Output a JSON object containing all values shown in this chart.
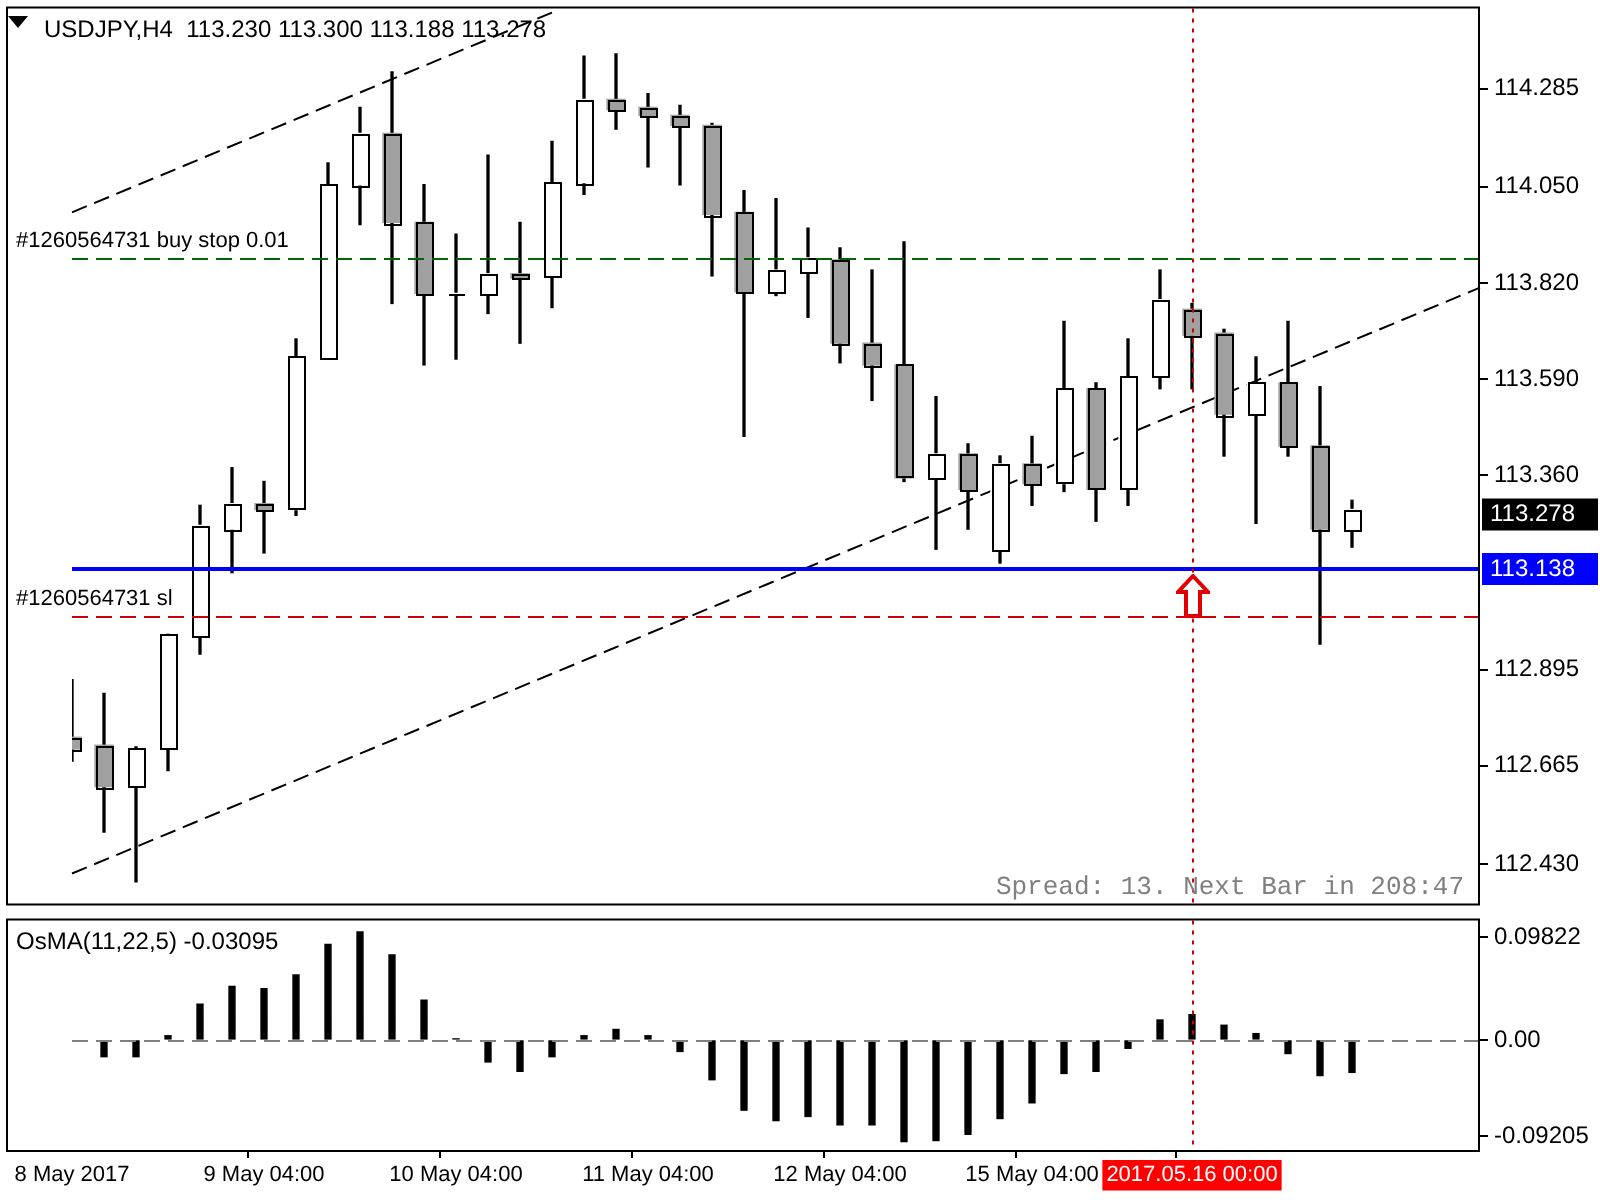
{
  "chart_data": [
    {
      "type": "candlestick",
      "title": "USDJPY,H4  113.230 113.300 113.188 113.278",
      "categories": [
        "8 May 2017",
        null,
        null,
        null,
        null,
        null,
        "9 May 04:00",
        null,
        null,
        null,
        null,
        null,
        "10 May 04:00",
        null,
        null,
        null,
        null,
        null,
        "11 May 04:00",
        null,
        null,
        null,
        null,
        null,
        "12 May 04:00",
        null,
        null,
        null,
        null,
        null,
        "15 May 04:00",
        null,
        null,
        null,
        null,
        "2017.05.16 00:00",
        null,
        null,
        null,
        null,
        null,
        null,
        null,
        null,
        null
      ],
      "ohlc": [
        [
          112.733,
          112.871,
          112.676,
          112.705
        ],
        [
          112.714,
          112.838,
          112.506,
          112.615
        ],
        [
          112.615,
          112.71,
          112.387,
          112.705
        ],
        [
          112.705,
          112.98,
          112.653,
          112.98
        ],
        [
          112.975,
          113.288,
          112.932,
          113.24
        ],
        [
          113.231,
          113.378,
          113.127,
          113.292
        ],
        [
          113.292,
          113.345,
          113.174,
          113.278
        ],
        [
          113.278,
          113.686,
          113.264,
          113.643
        ],
        [
          113.638,
          114.107,
          113.638,
          114.055
        ],
        [
          114.055,
          114.24,
          113.96,
          114.178
        ],
        [
          114.178,
          114.325,
          113.771,
          113.965
        ],
        [
          113.965,
          114.055,
          113.624,
          113.795
        ],
        [
          113.795,
          113.937,
          113.638,
          113.795
        ],
        [
          113.795,
          114.126,
          113.747,
          113.842
        ],
        [
          113.842,
          113.965,
          113.676,
          113.832
        ],
        [
          113.837,
          114.159,
          113.761,
          114.06
        ],
        [
          114.06,
          114.363,
          114.032,
          114.259
        ],
        [
          114.259,
          114.368,
          114.188,
          114.235
        ],
        [
          114.24,
          114.273,
          114.098,
          114.221
        ],
        [
          114.221,
          114.245,
          114.055,
          114.197
        ],
        [
          114.197,
          114.202,
          113.837,
          113.984
        ],
        [
          113.989,
          114.041,
          113.453,
          113.799
        ],
        [
          113.799,
          114.022,
          113.79,
          113.851
        ],
        [
          113.847,
          113.951,
          113.738,
          113.88
        ],
        [
          113.875,
          113.904,
          113.629,
          113.676
        ],
        [
          113.676,
          113.851,
          113.539,
          113.624
        ],
        [
          113.624,
          113.918,
          113.345,
          113.354
        ],
        [
          113.354,
          113.548,
          113.183,
          113.411
        ],
        [
          113.411,
          113.435,
          113.231,
          113.326
        ],
        [
          113.179,
          113.406,
          113.15,
          113.387
        ],
        [
          113.387,
          113.453,
          113.288,
          113.34
        ],
        [
          113.34,
          113.728,
          113.321,
          113.567
        ],
        [
          113.567,
          113.581,
          113.25,
          113.326
        ],
        [
          113.326,
          113.686,
          113.288,
          113.596
        ],
        [
          113.596,
          113.851,
          113.567,
          113.78
        ],
        [
          113.757,
          113.771,
          113.567,
          113.695
        ],
        [
          113.7,
          113.709,
          113.406,
          113.506
        ],
        [
          113.506,
          113.643,
          113.245,
          113.581
        ],
        [
          113.581,
          113.728,
          113.406,
          113.43
        ],
        [
          113.43,
          113.572,
          112.956,
          113.231
        ],
        [
          113.23,
          113.3,
          113.188,
          113.278
        ],
        null,
        null,
        null,
        null
      ],
      "color": "#000000",
      "colors": [
        "#a0a0a0",
        "#a0a0a0",
        "#ffffff",
        "#ffffff",
        "#ffffff",
        "#ffffff",
        "#a0a0a0",
        "#ffffff",
        "#ffffff",
        "#ffffff",
        "#a0a0a0",
        "#a0a0a0",
        "#ffffff",
        "#ffffff",
        "#a0a0a0",
        "#ffffff",
        "#ffffff",
        "#a0a0a0",
        "#a0a0a0",
        "#a0a0a0",
        "#a0a0a0",
        "#a0a0a0",
        "#ffffff",
        "#ffffff",
        "#a0a0a0",
        "#a0a0a0",
        "#a0a0a0",
        "#ffffff",
        "#a0a0a0",
        "#ffffff",
        "#a0a0a0",
        "#ffffff",
        "#a0a0a0",
        "#ffffff",
        "#ffffff",
        "#a0a0a0",
        "#a0a0a0",
        "#ffffff",
        "#a0a0a0",
        "#a0a0a0",
        "#ffffff",
        null,
        null,
        null,
        null
      ],
      "series": [
        {
          "type": "line",
          "color": "#000000",
          "line_style": "dashed",
          "values": [
            112.407,
            null,
            null,
            null,
            null,
            null,
            null,
            null,
            null,
            null,
            null,
            null,
            null,
            null,
            null,
            null,
            null,
            null,
            null,
            null,
            null,
            null,
            null,
            null,
            null,
            null,
            null,
            null,
            null,
            null,
            null,
            null,
            null,
            null,
            null,
            null,
            null,
            null,
            null,
            null,
            null,
            null,
            null,
            null,
            113.809
          ]
        },
        {
          "type": "line",
          "color": "#000000",
          "line_style": "dashed",
          "values": [
            113.989,
            null,
            null,
            null,
            null,
            null,
            null,
            null,
            null,
            null,
            null,
            null,
            null,
            null,
            null,
            114.467,
            null,
            null,
            null,
            null,
            null,
            null,
            null,
            null,
            null,
            null,
            null,
            null,
            null,
            null,
            null,
            null,
            null,
            null,
            null,
            null,
            null,
            null,
            null,
            null,
            null,
            null,
            null,
            null,
            null
          ]
        }
      ],
      "ylim": [
        112.335,
        114.477
      ],
      "yticks": [
        114.285,
        {
          "value": 114.05,
          "label": "114.050"
        },
        {
          "value": 113.82,
          "label": "113.820"
        },
        {
          "value": 113.59,
          "label": "113.590"
        },
        {
          "value": 113.36,
          "label": "113.360"
        },
        112.895,
        112.665,
        {
          "value": 112.43,
          "label": "112.430"
        }
      ],
      "tick_labels": "y",
      "ref_lines": [
        {
          "axis": "y",
          "value": 113.878,
          "label": "#1260564731 buy stop 0.01",
          "color": "#006400",
          "line_style": "dashed"
        },
        {
          "axis": "y",
          "value": 113.138,
          "label": "113.138",
          "color": "#0000ff",
          "line_style": "solid"
        },
        {
          "axis": "y",
          "value": 113.022,
          "label": "#1260564731 sl",
          "color": "#cc0000",
          "line_style": "dashed"
        },
        {
          "axis": "x",
          "value": "2017.05.16 00:00",
          "color": "#cc0000",
          "line_style": "dotted"
        }
      ],
      "annotations": [
        "Spread: 13. Next Bar in 208:47",
        "113.278"
      ]
    },
    {
      "type": "bar",
      "title": "OsMA(11,22,5) -0.03095",
      "categories": [
        "8 May 2017",
        null,
        null,
        null,
        null,
        null,
        "9 May 04:00",
        null,
        null,
        null,
        null,
        null,
        "10 May 04:00",
        null,
        null,
        null,
        null,
        null,
        "11 May 04:00",
        null,
        null,
        null,
        null,
        null,
        "12 May 04:00",
        null,
        null,
        null,
        null,
        null,
        "15 May 04:00",
        null,
        null,
        null,
        null,
        "2017.05.16 00:00",
        null,
        null,
        null,
        null,
        null,
        null,
        null,
        null,
        null
      ],
      "values": [
        null,
        -0.016,
        -0.016,
        0.004,
        0.034,
        0.051,
        0.049,
        0.062,
        0.091,
        0.103,
        0.081,
        0.038,
        0.001,
        -0.021,
        -0.03,
        -0.016,
        0.004,
        0.01,
        0.004,
        -0.011,
        -0.038,
        -0.067,
        -0.077,
        -0.073,
        -0.081,
        -0.081,
        -0.097,
        -0.096,
        -0.09,
        -0.075,
        -0.06,
        -0.032,
        -0.03,
        -0.008,
        0.019,
        0.024,
        0.014,
        0.006,
        -0.013,
        -0.034,
        -0.031,
        null,
        null,
        null,
        null
      ],
      "color": "#000000",
      "ylim": [
        -0.105,
        0.114
      ],
      "yticks": [
        0.09822,
        {
          "value": 0,
          "label": "0.00"
        },
        -0.09205
      ],
      "ref_lines": [
        {
          "axis": "y",
          "value": 0,
          "color": "#808080",
          "line_style": "dashed"
        },
        {
          "axis": "x",
          "value": "2017.05.16 00:00",
          "color": "#cc0000",
          "line_style": "dotted"
        }
      ]
    }
  ]
}
